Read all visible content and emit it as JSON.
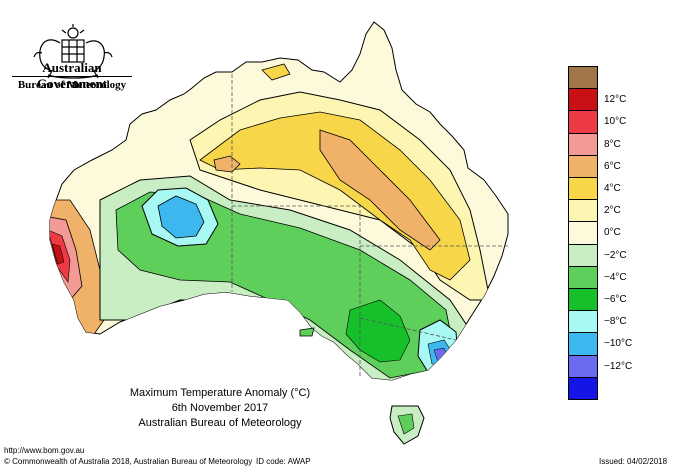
{
  "header": {
    "government": "Australian Government",
    "bureau": "Bureau of Meteorology"
  },
  "map": {
    "title": "Maximum Temperature Anomaly (°C)",
    "date": "6th November 2017",
    "source": "Australian Bureau of Meteorology",
    "land_background_color": "#fdf9d0",
    "ocean_color": "#ffffff"
  },
  "legend": {
    "items": [
      {
        "label": "",
        "color": "#a0764a"
      },
      {
        "label": "12°C",
        "color": "#c81016"
      },
      {
        "label": "10°C",
        "color": "#ee3a44"
      },
      {
        "label": "8°C",
        "color": "#f49a94"
      },
      {
        "label": "6°C",
        "color": "#f0b268"
      },
      {
        "label": "4°C",
        "color": "#f7d64a"
      },
      {
        "label": "2°C",
        "color": "#fdf6b2"
      },
      {
        "label": "0°C",
        "color": "#fdfadc"
      },
      {
        "label": "−2°C",
        "color": "#c9eec4"
      },
      {
        "label": "−4°C",
        "color": "#5fcf5c"
      },
      {
        "label": "−6°C",
        "color": "#16c02a"
      },
      {
        "label": "−8°C",
        "color": "#a8f8f4"
      },
      {
        "label": "−10°C",
        "color": "#3cb8ee"
      },
      {
        "label": "−12°C",
        "color": "#6b6bef"
      },
      {
        "label": "",
        "color": "#1515e8"
      }
    ]
  },
  "footer": {
    "url": "http://www.bom.gov.au",
    "copyright": "© Commonwealth of Australia 2018, Australian Bureau of Meteorology",
    "id_code": "ID code: AWAP",
    "issued": "Issued: 04/02/2018"
  }
}
